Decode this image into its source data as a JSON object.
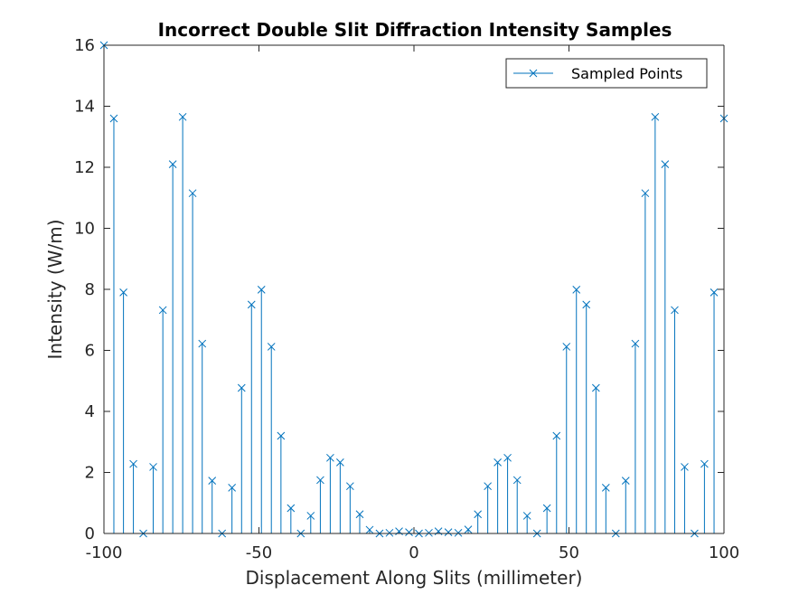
{
  "chart_data": {
    "type": "stem",
    "title": "Incorrect Double Slit Diffraction Intensity Samples",
    "xlabel": "Displacement Along Slits (millimeter)",
    "ylabel": "Intensity (W/m)",
    "xlim": [
      -100,
      100
    ],
    "ylim": [
      0,
      16
    ],
    "xticks": [
      -100,
      -50,
      0,
      50,
      100
    ],
    "yticks": [
      0,
      2,
      4,
      6,
      8,
      10,
      12,
      14,
      16
    ],
    "grid": false,
    "legend_position": "top-right",
    "series": [
      {
        "name": "Sampled Points",
        "color": "#0072BD",
        "marker": "x",
        "x": [
          -100,
          -96.8,
          -93.7,
          -90.5,
          -87.3,
          -84.1,
          -81,
          -77.8,
          -74.6,
          -71.4,
          -68.3,
          -65.1,
          -61.9,
          -58.7,
          -55.6,
          -52.4,
          -49.2,
          -46,
          -42.9,
          -39.7,
          -36.5,
          -33.3,
          -30.2,
          -27,
          -23.8,
          -20.6,
          -17.5,
          -14.3,
          -11.1,
          -7.9,
          -4.8,
          -1.6,
          1.6,
          4.8,
          7.9,
          11.1,
          14.3,
          17.5,
          20.6,
          23.8,
          27,
          30.2,
          33.3,
          36.5,
          39.7,
          42.9,
          46,
          49.2,
          52.4,
          55.6,
          58.7,
          61.9,
          65.1,
          68.3,
          71.4,
          74.6,
          77.8,
          81,
          84.1,
          87.3,
          90.5,
          93.7,
          96.8,
          100
        ],
        "y": [
          16,
          13.6,
          7.9,
          2.28,
          0,
          2.18,
          7.32,
          12.1,
          13.65,
          11.15,
          6.22,
          1.73,
          0,
          1.5,
          4.77,
          7.5,
          7.99,
          6.12,
          3.2,
          0.83,
          0,
          0.58,
          1.75,
          2.48,
          2.33,
          1.55,
          0.63,
          0.12,
          0,
          0.02,
          0.07,
          0.04,
          0,
          0.02,
          0.07,
          0.04,
          0.02,
          0.13,
          0.63,
          1.55,
          2.33,
          2.48,
          1.75,
          0.58,
          0,
          0.83,
          3.2,
          6.12,
          7.99,
          7.5,
          4.77,
          1.5,
          0,
          1.73,
          6.22,
          11.15,
          13.65,
          12.1,
          7.32,
          2.18,
          0,
          2.28,
          7.9,
          13.6
        ]
      }
    ]
  }
}
